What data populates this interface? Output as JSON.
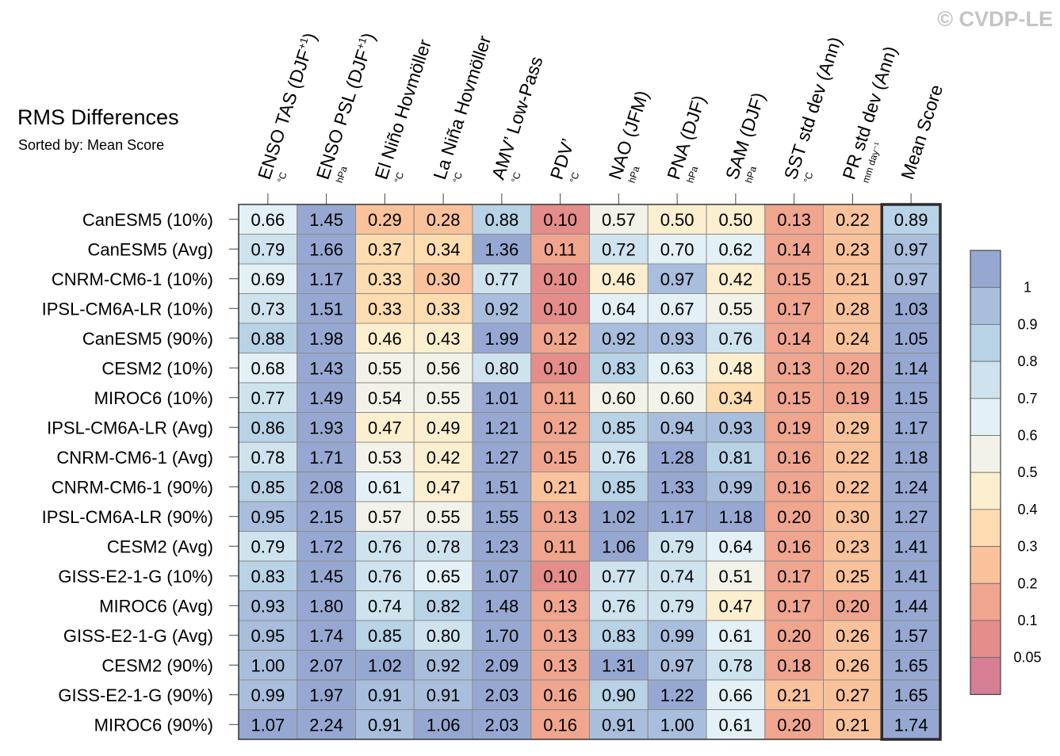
{
  "watermark": "© CVDP-LE",
  "chart_data": {
    "type": "heatmap",
    "title": "RMS Differences",
    "subtitle": "Sorted by: Mean Score",
    "columns": [
      {
        "label": "ENSO TAS (DJF",
        "sup": "+1",
        "close": ")",
        "unit": "°C"
      },
      {
        "label": "ENSO PSL (DJF",
        "sup": "+1",
        "close": ")",
        "unit": "hPa"
      },
      {
        "label": "El Niño Hovmöller",
        "sup": "",
        "close": "",
        "unit": "°C"
      },
      {
        "label": "La Niña Hovmöller",
        "sup": "",
        "close": "",
        "unit": "°C"
      },
      {
        "label": "AMV’ Low-Pass",
        "sup": "",
        "close": "",
        "unit": "°C"
      },
      {
        "label": "PDV’",
        "sup": "",
        "close": "",
        "unit": "°C"
      },
      {
        "label": "NAO (JFM)",
        "sup": "",
        "close": "",
        "unit": "hPa"
      },
      {
        "label": "PNA (DJF)",
        "sup": "",
        "close": "",
        "unit": "hPa"
      },
      {
        "label": "SAM (DJF)",
        "sup": "",
        "close": "",
        "unit": "hPa"
      },
      {
        "label": "SST std dev (Ann)",
        "sup": "",
        "close": "",
        "unit": "°C"
      },
      {
        "label": "PR std dev (Ann)",
        "sup": "",
        "close": "",
        "unit": "mm day⁻¹"
      },
      {
        "label": "Mean Score",
        "sup": "",
        "close": "",
        "unit": ""
      }
    ],
    "rows": [
      "CanESM5 (10%)",
      "CanESM5 (Avg)",
      "CNRM-CM6-1 (10%)",
      "IPSL-CM6A-LR (10%)",
      "CanESM5 (90%)",
      "CESM2 (10%)",
      "MIROC6 (10%)",
      "IPSL-CM6A-LR (Avg)",
      "CNRM-CM6-1 (Avg)",
      "CNRM-CM6-1 (90%)",
      "IPSL-CM6A-LR (90%)",
      "CESM2 (Avg)",
      "GISS-E2-1-G (10%)",
      "MIROC6 (Avg)",
      "GISS-E2-1-G (Avg)",
      "CESM2 (90%)",
      "GISS-E2-1-G (90%)",
      "MIROC6 (90%)"
    ],
    "values": [
      [
        "0.66",
        "1.45",
        "0.29",
        "0.28",
        "0.88",
        "0.10",
        "0.57",
        "0.50",
        "0.50",
        "0.13",
        "0.22",
        "0.89"
      ],
      [
        "0.79",
        "1.66",
        "0.37",
        "0.34",
        "1.36",
        "0.11",
        "0.72",
        "0.70",
        "0.62",
        "0.14",
        "0.23",
        "0.97"
      ],
      [
        "0.69",
        "1.17",
        "0.33",
        "0.30",
        "0.77",
        "0.10",
        "0.46",
        "0.97",
        "0.42",
        "0.15",
        "0.21",
        "0.97"
      ],
      [
        "0.73",
        "1.51",
        "0.33",
        "0.33",
        "0.92",
        "0.10",
        "0.64",
        "0.67",
        "0.55",
        "0.17",
        "0.28",
        "1.03"
      ],
      [
        "0.88",
        "1.98",
        "0.46",
        "0.43",
        "1.99",
        "0.12",
        "0.92",
        "0.93",
        "0.76",
        "0.14",
        "0.24",
        "1.05"
      ],
      [
        "0.68",
        "1.43",
        "0.55",
        "0.56",
        "0.80",
        "0.10",
        "0.83",
        "0.63",
        "0.48",
        "0.13",
        "0.20",
        "1.14"
      ],
      [
        "0.77",
        "1.49",
        "0.54",
        "0.55",
        "1.01",
        "0.11",
        "0.60",
        "0.60",
        "0.34",
        "0.15",
        "0.19",
        "1.15"
      ],
      [
        "0.86",
        "1.93",
        "0.47",
        "0.49",
        "1.21",
        "0.12",
        "0.85",
        "0.94",
        "0.93",
        "0.19",
        "0.29",
        "1.17"
      ],
      [
        "0.78",
        "1.71",
        "0.53",
        "0.42",
        "1.27",
        "0.15",
        "0.76",
        "1.28",
        "0.81",
        "0.16",
        "0.22",
        "1.18"
      ],
      [
        "0.85",
        "2.08",
        "0.61",
        "0.47",
        "1.51",
        "0.21",
        "0.85",
        "1.33",
        "0.99",
        "0.16",
        "0.22",
        "1.24"
      ],
      [
        "0.95",
        "2.15",
        "0.57",
        "0.55",
        "1.55",
        "0.13",
        "1.02",
        "1.17",
        "1.18",
        "0.20",
        "0.30",
        "1.27"
      ],
      [
        "0.79",
        "1.72",
        "0.76",
        "0.78",
        "1.23",
        "0.11",
        "1.06",
        "0.79",
        "0.64",
        "0.16",
        "0.23",
        "1.41"
      ],
      [
        "0.83",
        "1.45",
        "0.76",
        "0.65",
        "1.07",
        "0.10",
        "0.77",
        "0.74",
        "0.51",
        "0.17",
        "0.25",
        "1.41"
      ],
      [
        "0.93",
        "1.80",
        "0.74",
        "0.82",
        "1.48",
        "0.13",
        "0.76",
        "0.79",
        "0.47",
        "0.17",
        "0.20",
        "1.44"
      ],
      [
        "0.95",
        "1.74",
        "0.85",
        "0.80",
        "1.70",
        "0.13",
        "0.83",
        "0.99",
        "0.61",
        "0.20",
        "0.26",
        "1.57"
      ],
      [
        "1.00",
        "2.07",
        "1.02",
        "0.92",
        "2.09",
        "0.13",
        "1.31",
        "0.97",
        "0.78",
        "0.18",
        "0.26",
        "1.65"
      ],
      [
        "0.99",
        "1.97",
        "0.91",
        "0.91",
        "2.03",
        "0.16",
        "0.90",
        "1.22",
        "0.66",
        "0.21",
        "0.27",
        "1.65"
      ],
      [
        "1.07",
        "2.24",
        "0.91",
        "1.06",
        "2.03",
        "0.16",
        "0.91",
        "1.00",
        "0.61",
        "0.20",
        "0.21",
        "1.74"
      ]
    ],
    "colorbar": {
      "labels": [
        "1",
        "0.9",
        "0.8",
        "0.7",
        "0.6",
        "0.5",
        "0.4",
        "0.3",
        "0.2",
        "0.1",
        "0.05"
      ],
      "bins": [
        1.0,
        0.9,
        0.8,
        0.7,
        0.6,
        0.5,
        0.4,
        0.3,
        0.2,
        0.1,
        0.05
      ],
      "colors": [
        "#96a8d2",
        "#a8bedc",
        "#b8d2e6",
        "#cfe3ef",
        "#e3f0f5",
        "#f2f2e8",
        "#fcefcf",
        "#fddcaf",
        "#f9c29b",
        "#f0a58f",
        "#e48d8a",
        "#d67f94"
      ]
    },
    "highlight_column": "Mean Score"
  }
}
